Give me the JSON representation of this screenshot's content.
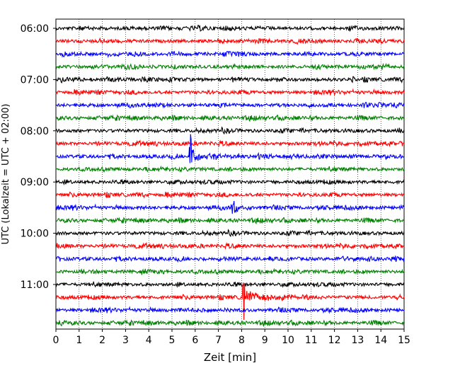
{
  "chart_data": {
    "type": "line",
    "title": "",
    "xlabel": "Zeit  [min]",
    "ylabel": "UTC (Lokalzeit = UTC + 02:00)",
    "xlim": [
      0,
      15
    ],
    "x_ticks": [
      "0",
      "1",
      "2",
      "3",
      "4",
      "5",
      "6",
      "7",
      "8",
      "9",
      "10",
      "11",
      "12",
      "13",
      "14",
      "15"
    ],
    "y_ticks": [
      "06:00",
      "07:00",
      "08:00",
      "09:00",
      "10:00",
      "11:00"
    ],
    "trace_start_times": [
      "06:00",
      "06:15",
      "06:30",
      "06:45",
      "07:00",
      "07:15",
      "07:30",
      "07:45",
      "08:00",
      "08:15",
      "08:30",
      "08:45",
      "09:00",
      "09:15",
      "09:30",
      "09:45",
      "10:00",
      "10:15",
      "10:30",
      "10:45",
      "11:00",
      "11:15",
      "11:30",
      "11:45"
    ],
    "trace_colors": [
      "#000000",
      "#ff0000",
      "#0000ff",
      "#008000"
    ],
    "grid": "vertical dotted lines at each minute",
    "events": [
      {
        "trace_start": "08:30",
        "minute": 5.8,
        "amplitude": "large"
      },
      {
        "trace_start": "09:30",
        "minute": 7.6,
        "amplitude": "medium"
      },
      {
        "trace_start": "11:15",
        "minute": 8.1,
        "amplitude": "large"
      },
      {
        "trace_start": "11:30",
        "minute": 5.3,
        "amplitude": "small"
      }
    ]
  }
}
